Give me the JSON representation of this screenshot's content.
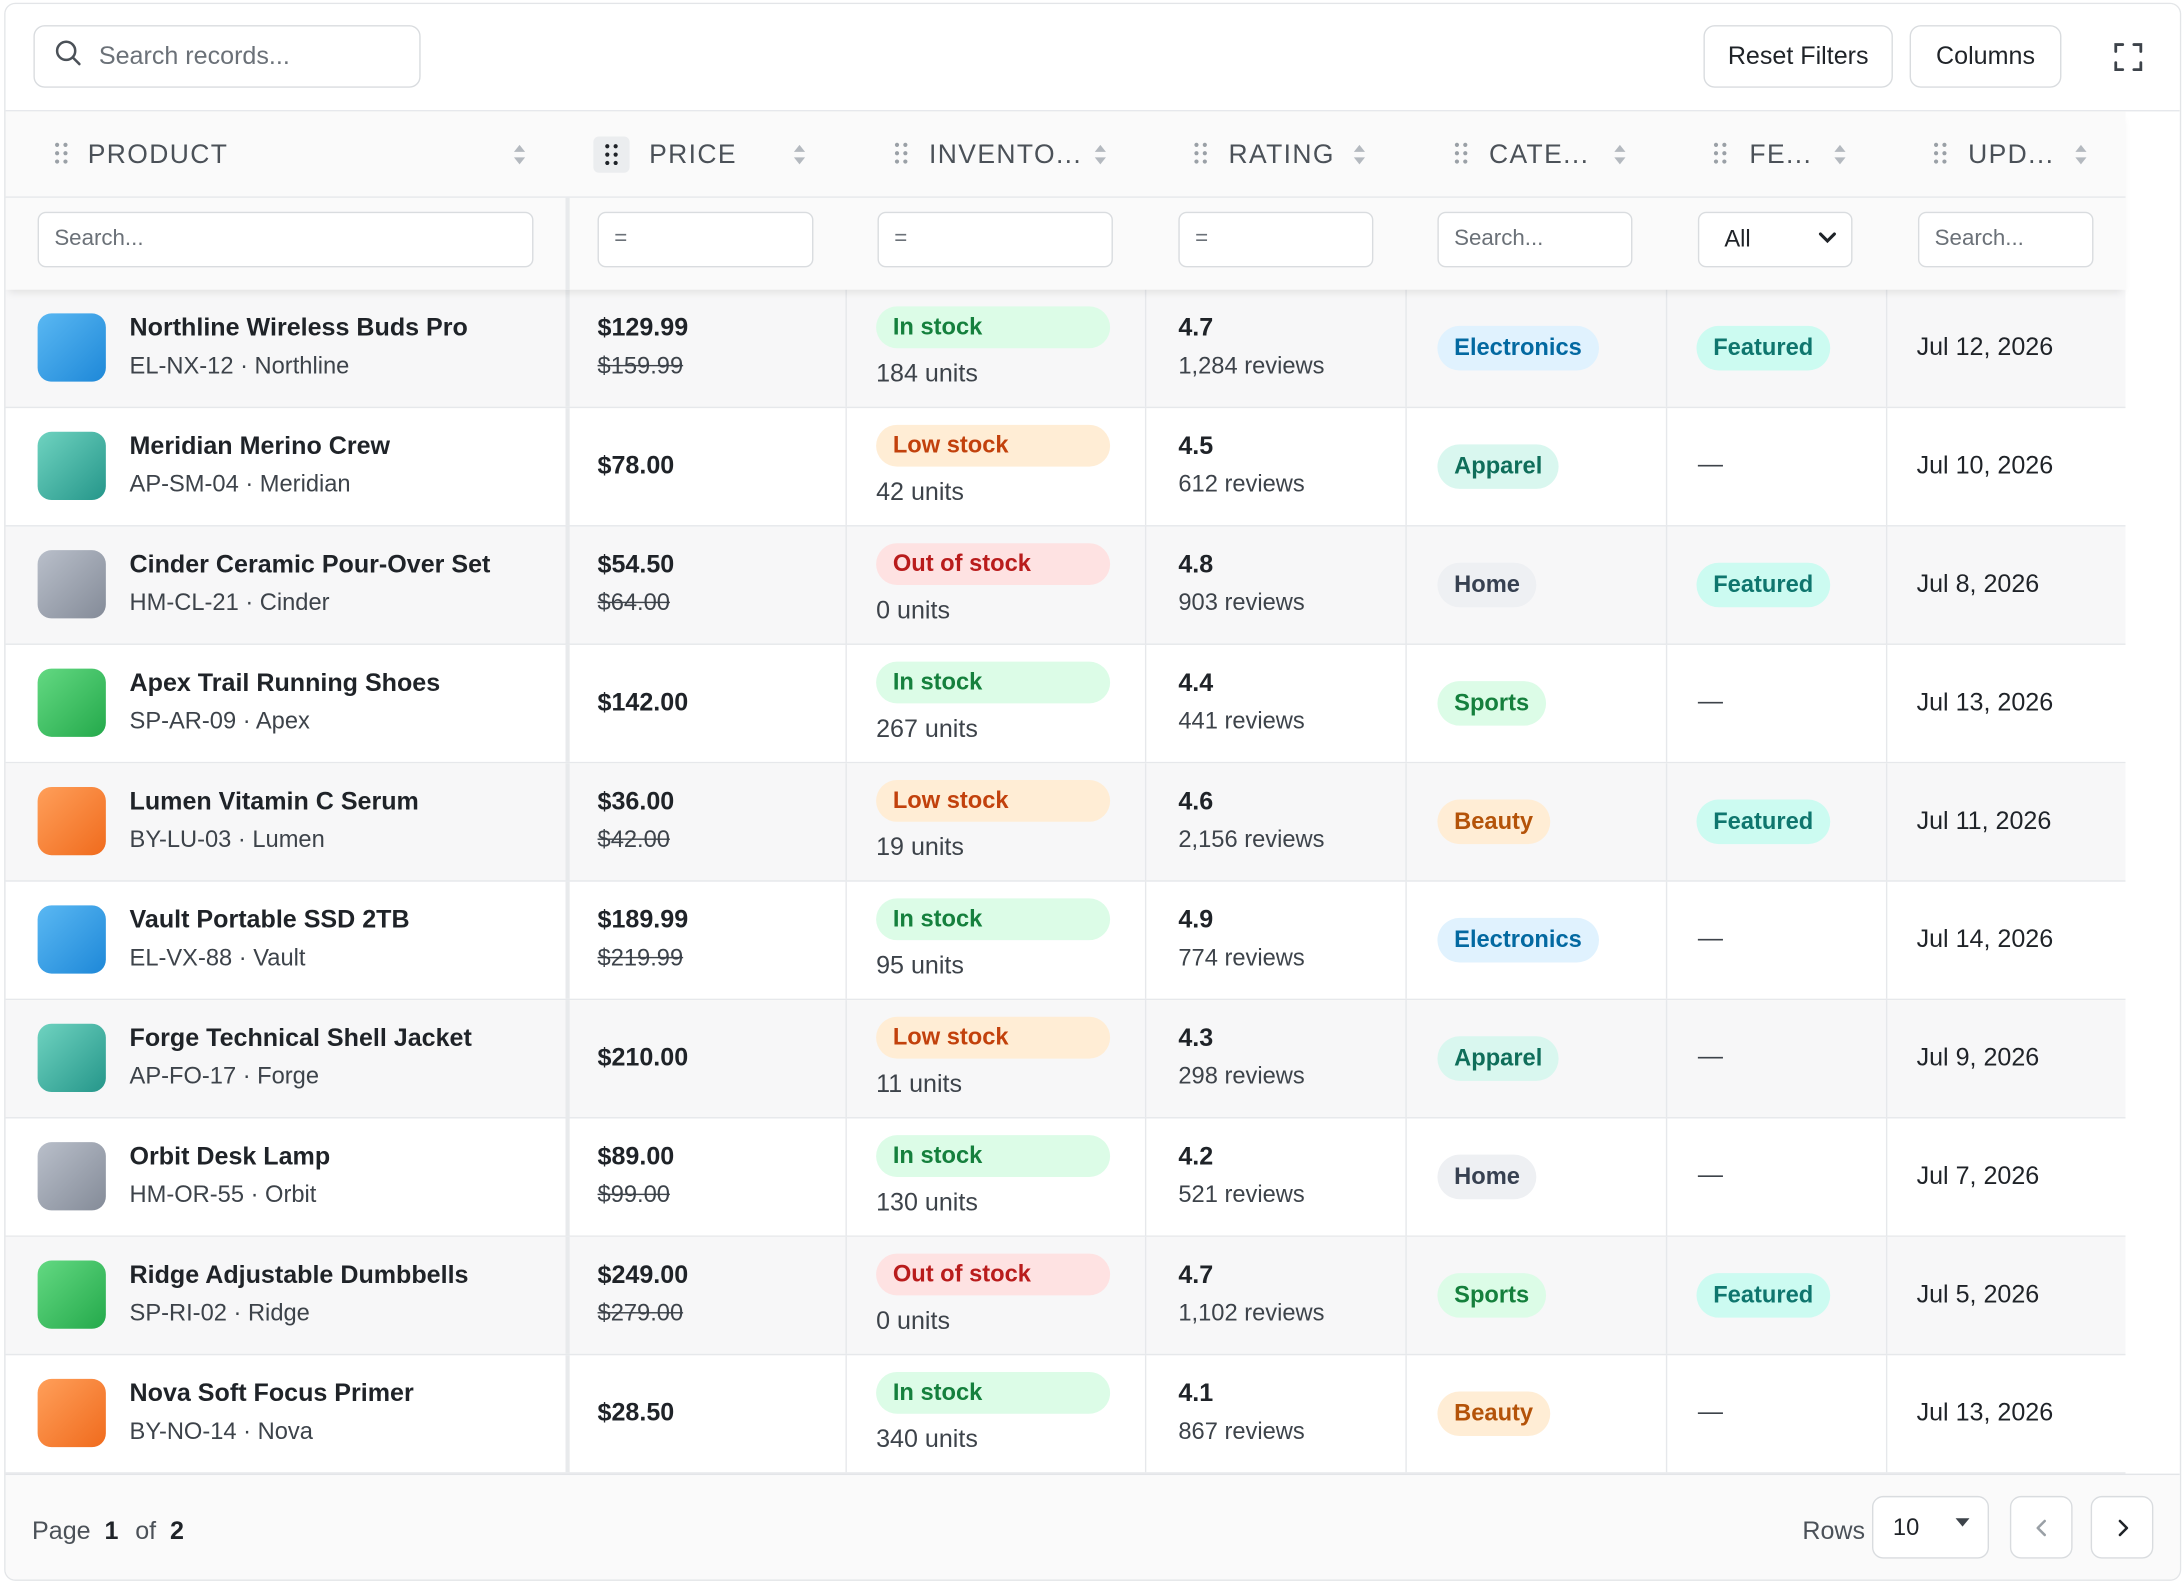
{
  "toolbar": {
    "search_placeholder": "Search records...",
    "reset_label": "Reset Filters",
    "columns_label": "Columns",
    "fullscreen_icon": "expand-icon"
  },
  "columns": [
    {
      "key": "product",
      "label": "PRODUCT",
      "filter": "Search..."
    },
    {
      "key": "price",
      "label": "PRICE",
      "filter": "="
    },
    {
      "key": "inventory",
      "label": "INVENTO...",
      "filter": "="
    },
    {
      "key": "rating",
      "label": "RATING",
      "filter": "="
    },
    {
      "key": "category",
      "label": "CATE...",
      "filter": "Search..."
    },
    {
      "key": "featured",
      "label": "FE...",
      "filter": "All"
    },
    {
      "key": "updated",
      "label": "UPD...",
      "filter": "Search..."
    }
  ],
  "colors": {
    "in_stock_bg": "#dcfce7",
    "in_stock_fg": "#15803d",
    "low_stock_bg": "#ffedd5",
    "low_stock_fg": "#c2410c",
    "out_stock_bg": "#fee2e2",
    "out_stock_fg": "#b91c1c",
    "featured_bg": "#ccfbf1",
    "featured_fg": "#0f766e"
  },
  "rows": [
    {
      "name": "Northline Wireless Buds Pro",
      "sub": "EL-NX-12 · Northline",
      "thumb": "blue",
      "price": "$129.99",
      "old_price": "$159.99",
      "stock": "In stock",
      "stock_type": "in",
      "units": "184 units",
      "rating": "4.7",
      "reviews": "1,284 reviews",
      "category": "Electronics",
      "featured": "Featured",
      "updated": "Jul 12, 2026"
    },
    {
      "name": "Meridian Merino Crew",
      "sub": "AP-SM-04 · Meridian",
      "thumb": "teal",
      "price": "$78.00",
      "old_price": "",
      "stock": "Low stock",
      "stock_type": "low",
      "units": "42 units",
      "rating": "4.5",
      "reviews": "612 reviews",
      "category": "Apparel",
      "featured": "—",
      "updated": "Jul 10, 2026"
    },
    {
      "name": "Cinder Ceramic Pour-Over Set",
      "sub": "HM-CL-21 · Cinder",
      "thumb": "gray",
      "price": "$54.50",
      "old_price": "$64.00",
      "stock": "Out of stock",
      "stock_type": "out",
      "units": "0 units",
      "rating": "4.8",
      "reviews": "903 reviews",
      "category": "Home",
      "featured": "Featured",
      "updated": "Jul 8, 2026"
    },
    {
      "name": "Apex Trail Running Shoes",
      "sub": "SP-AR-09 · Apex",
      "thumb": "green",
      "price": "$142.00",
      "old_price": "",
      "stock": "In stock",
      "stock_type": "in",
      "units": "267 units",
      "rating": "4.4",
      "reviews": "441 reviews",
      "category": "Sports",
      "featured": "—",
      "updated": "Jul 13, 2026"
    },
    {
      "name": "Lumen Vitamin C Serum",
      "sub": "BY-LU-03 · Lumen",
      "thumb": "orange",
      "price": "$36.00",
      "old_price": "$42.00",
      "stock": "Low stock",
      "stock_type": "low",
      "units": "19 units",
      "rating": "4.6",
      "reviews": "2,156 reviews",
      "category": "Beauty",
      "featured": "Featured",
      "updated": "Jul 11, 2026"
    },
    {
      "name": "Vault Portable SSD 2TB",
      "sub": "EL-VX-88 · Vault",
      "thumb": "blue",
      "price": "$189.99",
      "old_price": "$219.99",
      "stock": "In stock",
      "stock_type": "in",
      "units": "95 units",
      "rating": "4.9",
      "reviews": "774 reviews",
      "category": "Electronics",
      "featured": "—",
      "updated": "Jul 14, 2026"
    },
    {
      "name": "Forge Technical Shell Jacket",
      "sub": "AP-FO-17 · Forge",
      "thumb": "teal",
      "price": "$210.00",
      "old_price": "",
      "stock": "Low stock",
      "stock_type": "low",
      "units": "11 units",
      "rating": "4.3",
      "reviews": "298 reviews",
      "category": "Apparel",
      "featured": "—",
      "updated": "Jul 9, 2026"
    },
    {
      "name": "Orbit Desk Lamp",
      "sub": "HM-OR-55 · Orbit",
      "thumb": "gray",
      "price": "$89.00",
      "old_price": "$99.00",
      "stock": "In stock",
      "stock_type": "in",
      "units": "130 units",
      "rating": "4.2",
      "reviews": "521 reviews",
      "category": "Home",
      "featured": "—",
      "updated": "Jul 7, 2026"
    },
    {
      "name": "Ridge Adjustable Dumbbells",
      "sub": "SP-RI-02 · Ridge",
      "thumb": "green",
      "price": "$249.00",
      "old_price": "$279.00",
      "stock": "Out of stock",
      "stock_type": "out",
      "units": "0 units",
      "rating": "4.7",
      "reviews": "1,102 reviews",
      "category": "Sports",
      "featured": "Featured",
      "updated": "Jul 5, 2026"
    },
    {
      "name": "Nova Soft Focus Primer",
      "sub": "BY-NO-14 · Nova",
      "thumb": "orange",
      "price": "$28.50",
      "old_price": "",
      "stock": "In stock",
      "stock_type": "in",
      "units": "340 units",
      "rating": "4.1",
      "reviews": "867 reviews",
      "category": "Beauty",
      "featured": "—",
      "updated": "Jul 13, 2026"
    }
  ],
  "footer": {
    "page_word": "Page",
    "current_page": "1",
    "of_word": "of",
    "total_pages": "2",
    "rows_label": "Rows",
    "rows_value": "10"
  }
}
